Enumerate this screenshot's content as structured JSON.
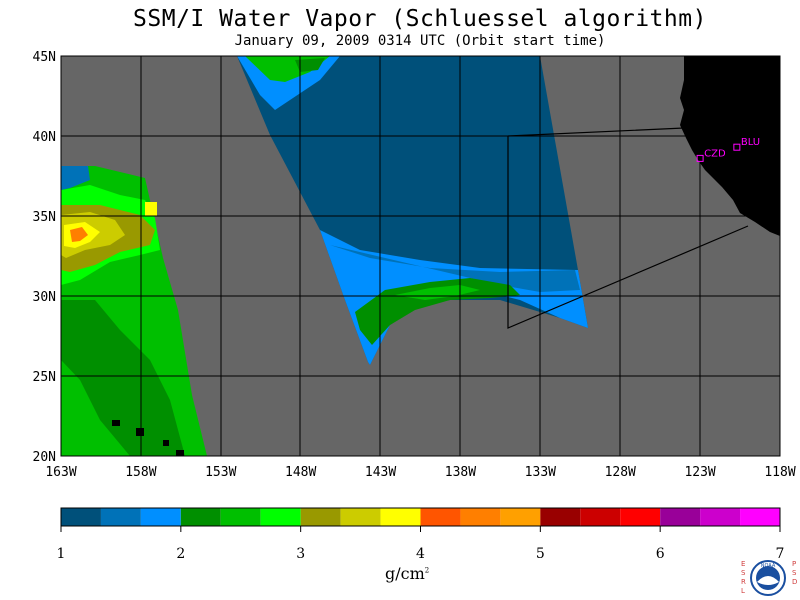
{
  "title": "SSM/I Water Vapor (Schluessel algorithm)",
  "subtitle": "January 09, 2009  0314 UTC  (Orbit start time)",
  "map": {
    "lat_ticks": [
      "45N",
      "40N",
      "35N",
      "30N",
      "25N",
      "20N"
    ],
    "lon_ticks": [
      "163W",
      "158W",
      "153W",
      "148W",
      "143W",
      "138W",
      "133W",
      "128W",
      "123W",
      "118W"
    ],
    "lat_range": [
      20,
      45
    ],
    "lon_range": [
      -163,
      -118
    ],
    "stations": [
      {
        "label": "CZD",
        "lon": -123.0,
        "lat": 38.6
      },
      {
        "label": "BLU",
        "lon": -120.7,
        "lat": 39.3
      }
    ],
    "colors": {
      "no_data": "#666666",
      "land": "#000000",
      "station": "#ff00ff"
    }
  },
  "colorbar": {
    "tick_labels": [
      "1",
      "2",
      "3",
      "4",
      "5",
      "6",
      "7"
    ],
    "min": 1,
    "max": 7,
    "colors": [
      "#00507a",
      "#0072b8",
      "#008fff",
      "#008f00",
      "#00bf00",
      "#00ff00",
      "#999900",
      "#cccc00",
      "#ffff00",
      "#ff5500",
      "#ff7f00",
      "#ffa000",
      "#990000",
      "#cc0000",
      "#ff0000",
      "#990099",
      "#cc00cc",
      "#ff00ff"
    ],
    "units_main": "g/cm",
    "units_sup": "2"
  },
  "logo": {
    "left_letters": "ESRL",
    "right_letters": "PSD",
    "center_text": "NOAA"
  }
}
